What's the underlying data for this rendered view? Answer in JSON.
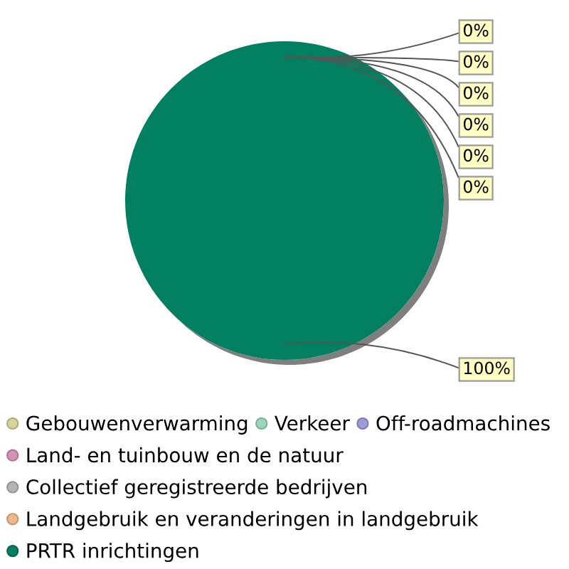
{
  "chart_data": {
    "type": "pie",
    "categories": [
      "Gebouwenverwarming",
      "Verkeer",
      "Off-roadmachines",
      "Land- en tuinbouw en de natuur",
      "Collectief geregistreerde bedrijven",
      "Landgebruik en veranderingen in landgebruik",
      "PRTR inrichtingen"
    ],
    "values": [
      0,
      0,
      0,
      0,
      0,
      0,
      100
    ],
    "colors": [
      "#d6d496",
      "#98d8b8",
      "#9c9cd8",
      "#d890b4",
      "#b4b4b4",
      "#f0b888",
      "#008060"
    ],
    "value_labels": [
      "0%",
      "0%",
      "0%",
      "0%",
      "0%",
      "0%",
      "100%"
    ],
    "legend": "bottom"
  }
}
